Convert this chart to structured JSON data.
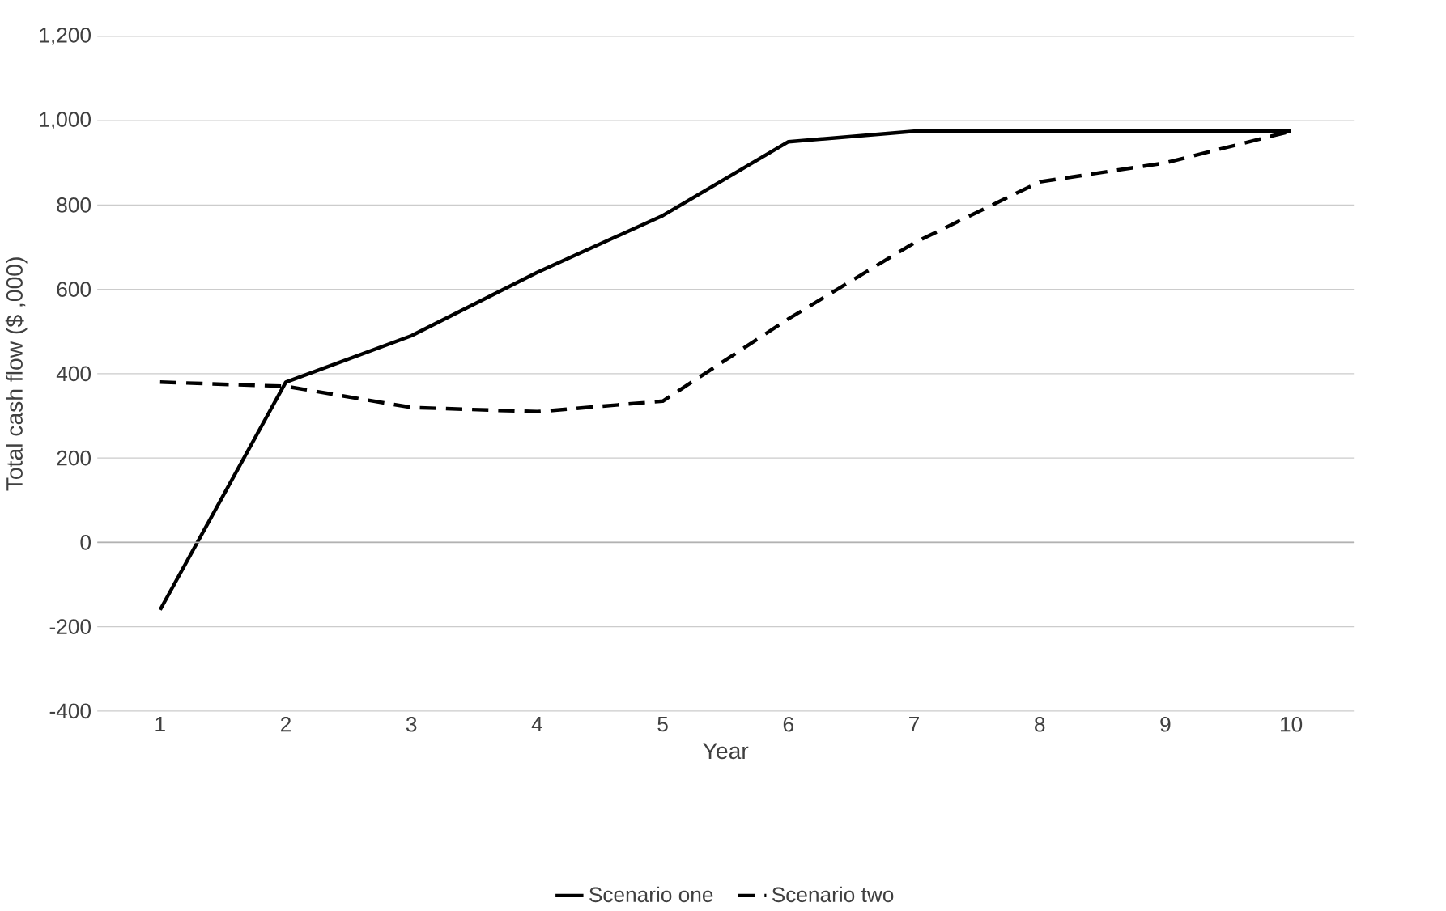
{
  "chart_data": {
    "type": "line",
    "xlabel": "Year",
    "ylabel": "Total cash flow ($ ,000)",
    "categories": [
      "1",
      "2",
      "3",
      "4",
      "5",
      "6",
      "7",
      "8",
      "9",
      "10"
    ],
    "series": [
      {
        "name": "Scenario one",
        "color": "#000000",
        "line_style": "solid",
        "values": [
          -160,
          380,
          490,
          640,
          775,
          950,
          975,
          975,
          975,
          975
        ]
      },
      {
        "name": "Scenario two",
        "color": "#000000",
        "line_style": "dashed",
        "values": [
          380,
          370,
          320,
          310,
          335,
          530,
          710,
          855,
          900,
          975
        ]
      }
    ],
    "ylim": [
      -400,
      1200
    ],
    "yticks": [
      {
        "value": -400,
        "label": "-400"
      },
      {
        "value": -200,
        "label": "-200"
      },
      0,
      200,
      400,
      600,
      800,
      {
        "value": 1000,
        "label": "1,000"
      },
      {
        "value": 1200,
        "label": "1,200"
      }
    ],
    "grid": "y",
    "legend": "bottom",
    "marker": "none"
  }
}
